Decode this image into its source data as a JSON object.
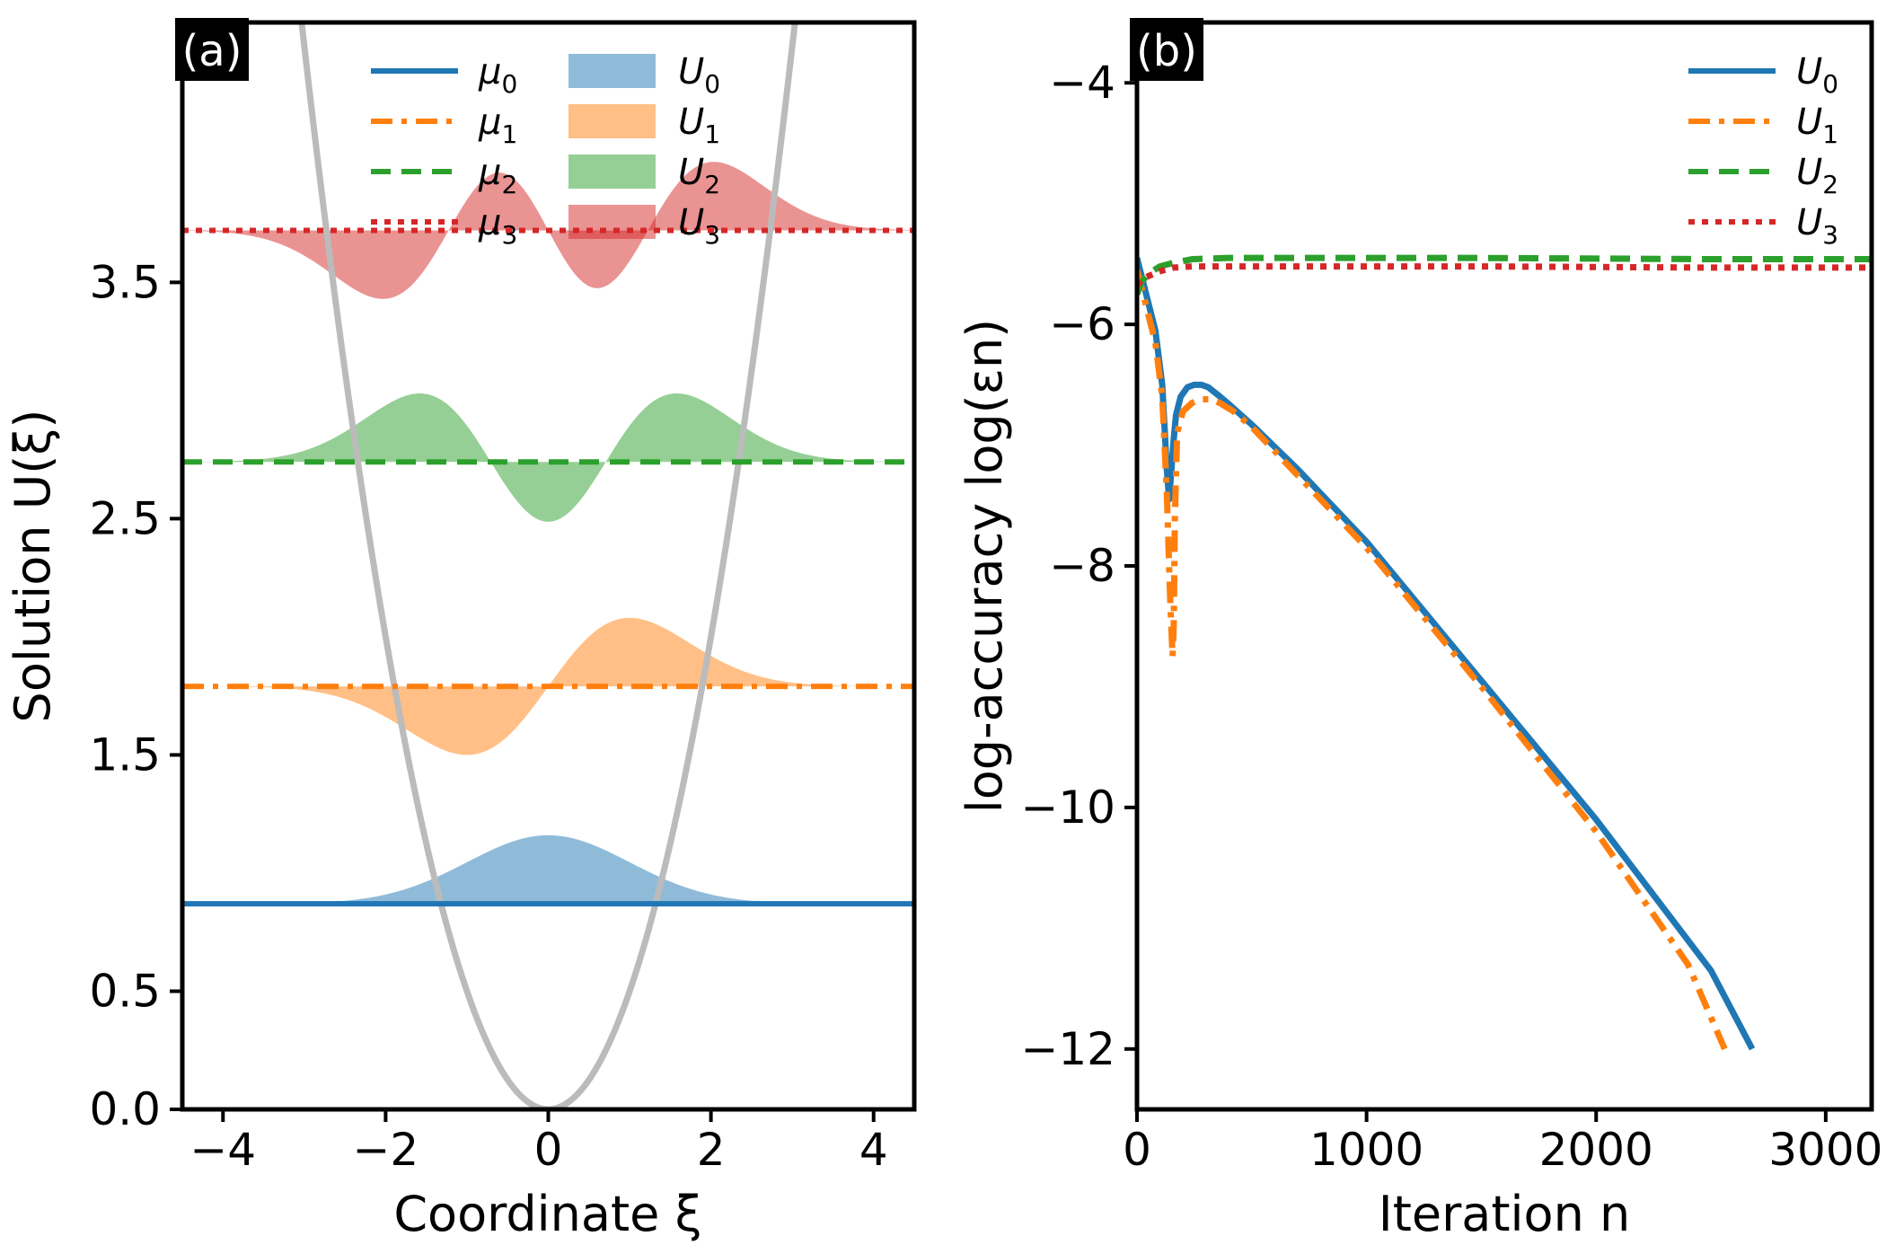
{
  "chart_data": [
    {
      "type": "area",
      "panel_label": "(a)",
      "xlabel": "Coordinate ξ",
      "ylabel": "Solution U(ξ)",
      "xlim": [
        -4.5,
        4.5
      ],
      "ylim": [
        0.0,
        4.6
      ],
      "xticks": [
        -4,
        -2,
        0,
        2,
        4
      ],
      "xtick_labels": [
        "−4",
        "−2",
        "0",
        "2",
        "4"
      ],
      "yticks": [
        0.0,
        0.5,
        1.5,
        2.5,
        3.5
      ],
      "ytick_labels": [
        "0.0",
        "0.5",
        "1.5",
        "2.5",
        "3.5"
      ],
      "grid": false,
      "legend": "top",
      "potential": {
        "name": "V(ξ) = ξ²/2",
        "color": "#bbbbbb",
        "x_range": [
          -4.5,
          4.5
        ]
      },
      "lines": [
        {
          "name": "μ",
          "sub": "0",
          "value": 0.87,
          "color": "#1f77b4",
          "style": "solid"
        },
        {
          "name": "μ",
          "sub": "1",
          "value": 1.79,
          "color": "#ff7f0e",
          "style": "dashdot"
        },
        {
          "name": "μ",
          "sub": "2",
          "value": 2.74,
          "color": "#2ca02c",
          "style": "dashed"
        },
        {
          "name": "μ",
          "sub": "3",
          "value": 3.72,
          "color": "#d62728",
          "style": "dotted"
        }
      ],
      "modes": [
        {
          "name": "U",
          "sub": "0",
          "order": 0,
          "baseline": 0.87,
          "peak": 0.29,
          "color": "#1f77b4"
        },
        {
          "name": "U",
          "sub": "1",
          "order": 1,
          "baseline": 1.79,
          "peak": 0.29,
          "color": "#ff7f0e"
        },
        {
          "name": "U",
          "sub": "2",
          "order": 2,
          "baseline": 2.74,
          "peak": 0.29,
          "color": "#2ca02c"
        },
        {
          "name": "U",
          "sub": "3",
          "order": 3,
          "baseline": 3.72,
          "peak": 0.29,
          "color": "#d62728"
        }
      ]
    },
    {
      "type": "line",
      "panel_label": "(b)",
      "xlabel": "Iteration n",
      "ylabel": "log-accuracy log(εn)",
      "xlim": [
        0,
        3200
      ],
      "ylim": [
        -12.5,
        -3.5
      ],
      "xticks": [
        0,
        1000,
        2000,
        3000
      ],
      "xtick_labels": [
        "0",
        "1000",
        "2000",
        "3000"
      ],
      "yticks": [
        -4,
        -6,
        -8,
        -10,
        -12
      ],
      "ytick_labels": [
        "−4",
        "−6",
        "−8",
        "−10",
        "−12"
      ],
      "grid": false,
      "legend": "top-right",
      "series": [
        {
          "name": "U",
          "sub": "0",
          "color": "#1f77b4",
          "style": "solid",
          "x": [
            0,
            40,
            80,
            110,
            130,
            140,
            150,
            160,
            170,
            190,
            220,
            250,
            280,
            310,
            350,
            400,
            500,
            700,
            1000,
            1500,
            2000,
            2500,
            2680
          ],
          "y": [
            -5.45,
            -5.75,
            -6.05,
            -6.5,
            -7.2,
            -7.45,
            -7.2,
            -6.95,
            -6.75,
            -6.6,
            -6.52,
            -6.5,
            -6.5,
            -6.52,
            -6.58,
            -6.66,
            -6.83,
            -7.2,
            -7.8,
            -8.95,
            -10.1,
            -11.35,
            -12.0
          ]
        },
        {
          "name": "U",
          "sub": "1",
          "color": "#ff7f0e",
          "style": "dashdot",
          "x": [
            0,
            40,
            80,
            110,
            130,
            145,
            155,
            160,
            165,
            175,
            200,
            240,
            280,
            320,
            360,
            420,
            500,
            700,
            1000,
            1500,
            2000,
            2400,
            2560
          ],
          "y": [
            -5.55,
            -5.85,
            -6.15,
            -6.6,
            -7.4,
            -8.3,
            -8.75,
            -8.5,
            -7.6,
            -6.9,
            -6.72,
            -6.65,
            -6.62,
            -6.62,
            -6.65,
            -6.72,
            -6.85,
            -7.25,
            -7.85,
            -9.0,
            -10.2,
            -11.3,
            -12.0
          ]
        },
        {
          "name": "U",
          "sub": "2",
          "color": "#2ca02c",
          "style": "dashed",
          "x": [
            0,
            20,
            50,
            100,
            160,
            240,
            400,
            800,
            1500,
            2500,
            3200
          ],
          "y": [
            -5.75,
            -5.65,
            -5.58,
            -5.52,
            -5.49,
            -5.46,
            -5.45,
            -5.45,
            -5.45,
            -5.46,
            -5.46
          ]
        },
        {
          "name": "U",
          "sub": "3",
          "color": "#d62728",
          "style": "dotted",
          "x": [
            0,
            20,
            50,
            100,
            160,
            240,
            400,
            800,
            1500,
            2500,
            3200
          ],
          "y": [
            -5.68,
            -5.63,
            -5.6,
            -5.56,
            -5.53,
            -5.52,
            -5.52,
            -5.52,
            -5.52,
            -5.53,
            -5.53
          ]
        }
      ]
    }
  ]
}
